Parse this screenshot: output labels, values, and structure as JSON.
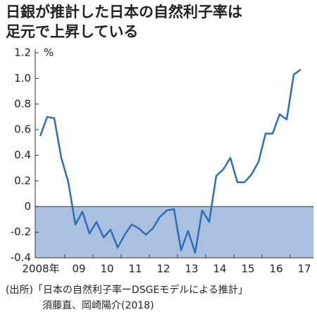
{
  "chart_data": {
    "type": "line",
    "title": "日銀が推計した日本の自然利子率は",
    "subtitle": "足元で上昇している",
    "y_unit": "%",
    "year_labels": [
      "2008年",
      "09",
      "10",
      "11",
      "12",
      "13",
      "14",
      "15",
      "16",
      "17"
    ],
    "values": [
      0.55,
      0.7,
      0.69,
      0.38,
      0.19,
      -0.14,
      -0.04,
      -0.21,
      -0.12,
      -0.24,
      -0.18,
      -0.32,
      -0.22,
      -0.14,
      -0.17,
      -0.22,
      -0.17,
      -0.08,
      -0.03,
      -0.02,
      -0.34,
      -0.19,
      -0.36,
      -0.03,
      -0.12,
      0.24,
      0.29,
      0.38,
      0.19,
      0.19,
      0.25,
      0.35,
      0.57,
      0.57,
      0.72,
      0.68,
      1.03,
      1.07
    ],
    "color": "#2f6db5",
    "shade_color": "#a9c0e0",
    "shade_below_zero": true,
    "ylim": [
      -0.4,
      1.2
    ],
    "yticks": [
      {
        "value": 1.2,
        "label": "1.2"
      },
      {
        "value": 1,
        "label": "1.0"
      },
      0.8,
      0.6,
      0.4,
      0.2,
      0,
      -0.2,
      -0.4
    ],
    "source": [
      "(出所)「日本の自然利子率ーDSGEモデルによる推計」",
      "須藤直、岡崎陽介(2018)"
    ]
  }
}
